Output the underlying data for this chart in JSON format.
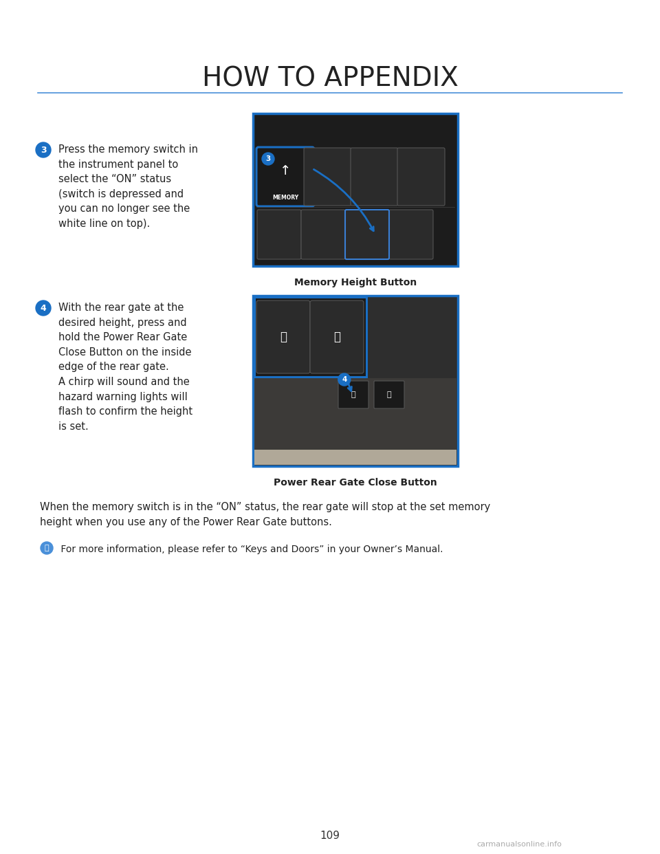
{
  "title": "HOW TO APPENDIX",
  "title_fontsize": 28,
  "title_color": "#222222",
  "divider_color": "#4a90d9",
  "bg_color": "#ffffff",
  "step3_badge": "3",
  "step3_badge_color": "#1a6fc4",
  "step3_text": "Press the memory switch in\nthe instrument panel to\nselect the “ON” status\n(switch is depressed and\nyou can no longer see the\nwhite line on top).",
  "step3_caption": "Memory Height Button",
  "step4_badge": "4",
  "step4_badge_color": "#1a6fc4",
  "step4_text": "With the rear gate at the\ndesired height, press and\nhold the Power Rear Gate\nClose Button on the inside\nedge of the rear gate.\nA chirp will sound and the\nhazard warning lights will\nflash to confirm the height\nis set.",
  "step4_caption": "Power Rear Gate Close Button",
  "note_text": "When the memory switch is in the “ON” status, the rear gate will stop at the set memory\nheight when you use any of the Power Rear Gate buttons.",
  "info_text": " For more information, please refer to “Keys and Doors” in your Owner’s Manual.",
  "page_number": "109",
  "watermark": "carmanualsonline.info",
  "body_fontsize": 10.5,
  "caption_fontsize": 10,
  "note_fontsize": 10.5
}
